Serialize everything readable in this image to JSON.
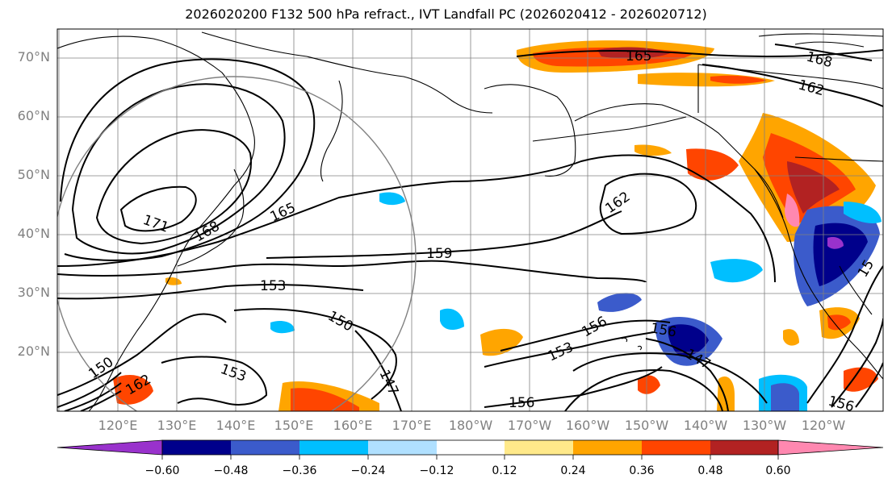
{
  "title": "2026020200 F132 500 hPa refract., IVT Landfall PC (2026020412 - 2026020712)",
  "map": {
    "lat_labels": [
      "70°N",
      "60°N",
      "50°N",
      "40°N",
      "30°N",
      "20°N"
    ],
    "lon_labels": [
      "120°E",
      "130°E",
      "140°E",
      "150°E",
      "160°E",
      "170°E",
      "180°W",
      "170°W",
      "160°W",
      "150°W",
      "140°W",
      "130°W",
      "120°W"
    ],
    "contour_labels": [
      "165",
      "168",
      "162",
      "162",
      "171",
      "168",
      "165",
      "159",
      "153",
      "150",
      "153",
      "150",
      "147",
      "156",
      "153",
      "156",
      "147",
      "156",
      "162",
      "156",
      "15"
    ],
    "colors": {
      "land_outline": "#000000",
      "grid": "#808080",
      "contour": "#000000",
      "circle": "#808080"
    }
  },
  "colorbar": {
    "ticks": [
      "−0.60",
      "−0.48",
      "−0.36",
      "−0.24",
      "−0.12",
      "0.12",
      "0.24",
      "0.36",
      "0.48",
      "0.60"
    ],
    "colors": [
      "#9932cc",
      "#00008b",
      "#3b5bcb",
      "#00bfff",
      "#b0e0ff",
      "#ffffff",
      "#ffe98a",
      "#ffa500",
      "#ff4500",
      "#b22222",
      "#ff88b0"
    ],
    "range": [
      -0.72,
      0.72
    ]
  }
}
